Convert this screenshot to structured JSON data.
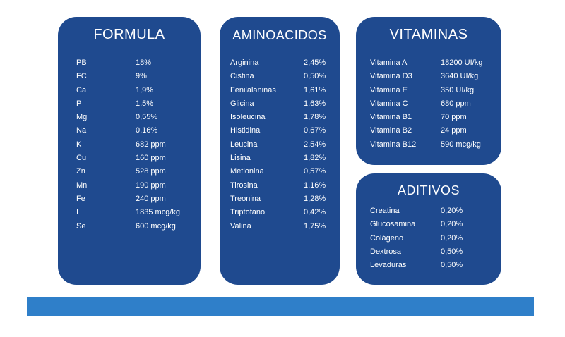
{
  "formula": {
    "title": "FORMULA",
    "rows": [
      {
        "k": "PB",
        "v": "18%"
      },
      {
        "k": "FC",
        "v": "9%"
      },
      {
        "k": "Ca",
        "v": "1,9%"
      },
      {
        "k": "P",
        "v": "1,5%"
      },
      {
        "k": "Mg",
        "v": "0,55%"
      },
      {
        "k": "Na",
        "v": "0,16%"
      },
      {
        "k": "K",
        "v": "682 ppm"
      },
      {
        "k": "Cu",
        "v": "160 ppm"
      },
      {
        "k": "Zn",
        "v": "528 ppm"
      },
      {
        "k": "Mn",
        "v": "190 ppm"
      },
      {
        "k": "Fe",
        "v": "240 ppm"
      },
      {
        "k": "I",
        "v": "1835 mcg/kg"
      },
      {
        "k": "Se",
        "v": "600 mcg/kg"
      }
    ]
  },
  "aminoacidos": {
    "title": "AMINOACIDOS",
    "rows": [
      {
        "k": "Arginina",
        "v": "2,45%"
      },
      {
        "k": "Cistina",
        "v": "0,50%"
      },
      {
        "k": "Fenilalaninas",
        "v": "1,61%"
      },
      {
        "k": "Glicina",
        "v": "1,63%"
      },
      {
        "k": "Isoleucina",
        "v": "1,78%"
      },
      {
        "k": "Histidina",
        "v": "0,67%"
      },
      {
        "k": "Leucina",
        "v": "2,54%"
      },
      {
        "k": "Lisina",
        "v": "1,82%"
      },
      {
        "k": "Metionina",
        "v": "0,57%"
      },
      {
        "k": "Tirosina",
        "v": "1,16%"
      },
      {
        "k": "Treonina",
        "v": "1,28%"
      },
      {
        "k": "Triptofano",
        "v": "0,42%"
      },
      {
        "k": "Valina",
        "v": "1,75%"
      }
    ]
  },
  "vitaminas": {
    "title": "VITAMINAS",
    "rows": [
      {
        "k": "Vitamina A",
        "v": "18200 UI/kg"
      },
      {
        "k": "Vitamina D3",
        "v": "3640 UI/kg"
      },
      {
        "k": "Vitamina E",
        "v": "350 UI/kg"
      },
      {
        "k": "Vitamina C",
        "v": "680 ppm"
      },
      {
        "k": "Vitamina B1",
        "v": "70 ppm"
      },
      {
        "k": "Vitamina B2",
        "v": "24 ppm"
      },
      {
        "k": "Vitamina B12",
        "v": "590 mcg/kg"
      }
    ]
  },
  "aditivos": {
    "title": "ADITIVOS",
    "rows": [
      {
        "k": "Creatina",
        "v": "0,20%"
      },
      {
        "k": "Glucosamina",
        "v": "0,20%"
      },
      {
        "k": "Colágeno",
        "v": "0,20%"
      },
      {
        "k": "Dextrosa",
        "v": "0,50%"
      },
      {
        "k": "Levaduras",
        "v": "0,50%"
      }
    ]
  },
  "colors": {
    "card": "#1f4a8f",
    "bar": "#2f7fc9"
  }
}
